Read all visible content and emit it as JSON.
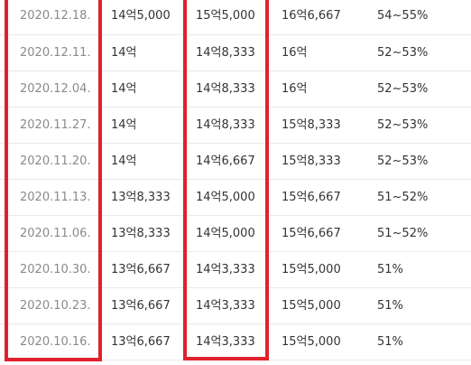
{
  "rows": [
    {
      "date": "2020.12.18.",
      "a": "14억5,000",
      "b": "15억5,000",
      "c": "16억6,667",
      "d": "54~55%"
    },
    {
      "date": "2020.12.11.",
      "a": "14억",
      "b": "14억8,333",
      "c": "16억",
      "d": "52~53%"
    },
    {
      "date": "2020.12.04.",
      "a": "14억",
      "b": "14억8,333",
      "c": "16억",
      "d": "52~53%"
    },
    {
      "date": "2020.11.27.",
      "a": "14억",
      "b": "14억8,333",
      "c": "15억8,333",
      "d": "52~53%"
    },
    {
      "date": "2020.11.20.",
      "a": "14억",
      "b": "14억6,667",
      "c": "15억8,333",
      "d": "52~53%"
    },
    {
      "date": "2020.11.13.",
      "a": "13억8,333",
      "b": "14억5,000",
      "c": "15억6,667",
      "d": "51~52%"
    },
    {
      "date": "2020.11.06.",
      "a": "13억8,333",
      "b": "14억5,000",
      "c": "15억6,667",
      "d": "51~52%"
    },
    {
      "date": "2020.10.30.",
      "a": "13억6,667",
      "b": "14억3,333",
      "c": "15억5,000",
      "d": "51%"
    },
    {
      "date": "2020.10.23.",
      "a": "13억6,667",
      "b": "14억3,333",
      "c": "15억5,000",
      "d": "51%"
    },
    {
      "date": "2020.10.16.",
      "a": "13억6,667",
      "b": "14억3,333",
      "c": "15억5,000",
      "d": "51%"
    }
  ],
  "colors": {
    "highlight": "#e0212b",
    "date_text": "#8a8a8a",
    "value_text": "#333333",
    "row_divider": "#e9e9e9"
  }
}
